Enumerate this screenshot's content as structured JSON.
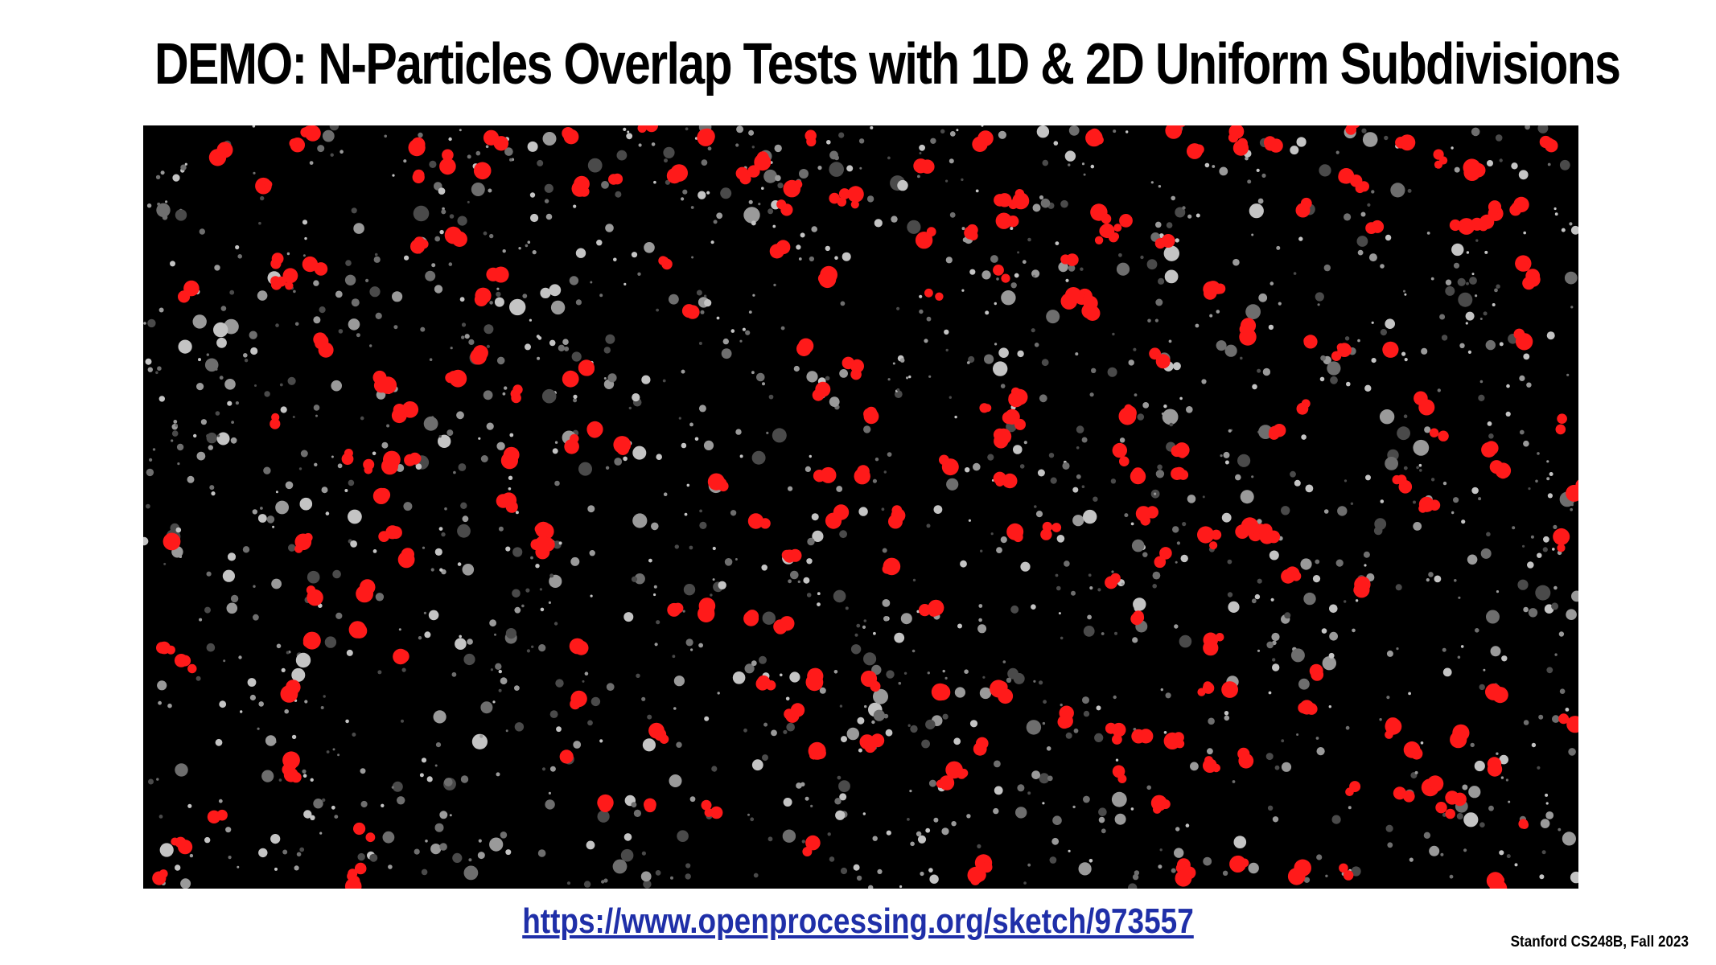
{
  "slide": {
    "title": "DEMO: N-Particles Overlap Tests with 1D & 2D Uniform Subdivisions",
    "link_text": "https://www.openprocessing.org/sketch/973557",
    "footer": "Stanford CS248B, Fall 2023"
  },
  "demo": {
    "background_color": "#000000",
    "overlapping_particle_color": "#ff1a1a",
    "free_particle_colors": [
      "#4a4a4a",
      "#6e6e6e",
      "#9a9a9a",
      "#c4c4c4"
    ]
  }
}
